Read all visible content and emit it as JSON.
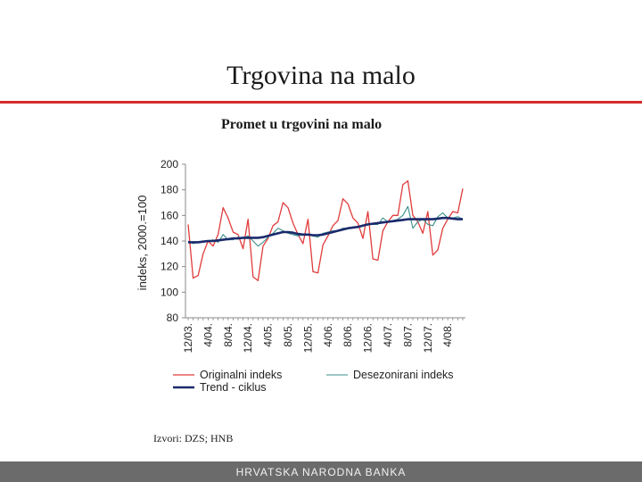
{
  "slide": {
    "title": "Trgovina na malo",
    "source": "Izvori: DZS; HNB",
    "footer": "HRVATSKA NARODNA BANKA",
    "accent_color": "#d42a2a"
  },
  "chart_data": {
    "type": "line",
    "title": "Promet u trgovini na malo",
    "ylabel": "indeks, 2000.=100",
    "ylim": [
      80,
      200
    ],
    "yticks": [
      80,
      100,
      120,
      140,
      160,
      180,
      200
    ],
    "x_tick_labels": [
      "12/03.",
      "4/04.",
      "8/04.",
      "12/04.",
      "4/05.",
      "8/05.",
      "12/05.",
      "4/06.",
      "8/06.",
      "12/06.",
      "4/07.",
      "8/07.",
      "12/07.",
      "4/08."
    ],
    "x_tick_start_index": 0,
    "x_tick_step": 4,
    "n_points": 56,
    "legend": {
      "position": "bottom"
    },
    "series": [
      {
        "name": "Originalni indeks",
        "color": "#e03c3c",
        "values": [
          153,
          111,
          113,
          130,
          140,
          136,
          145,
          166,
          158,
          147,
          145,
          134,
          157,
          112,
          109,
          136,
          142,
          152,
          155,
          170,
          166,
          154,
          145,
          138,
          157,
          116,
          115,
          137,
          144,
          152,
          156,
          173,
          169,
          158,
          154,
          142,
          163,
          126,
          125,
          148,
          155,
          160,
          160,
          184,
          187,
          160,
          155,
          146,
          163,
          129,
          133,
          150,
          157,
          163,
          162,
          181
        ]
      },
      {
        "name": "Desezonirani indeks",
        "color": "#3a8f8a",
        "values": [
          140,
          138,
          139,
          139,
          140,
          141,
          139,
          145,
          141,
          141,
          143,
          142,
          144,
          140,
          136,
          139,
          143,
          146,
          150,
          148,
          146,
          145,
          144,
          145,
          145,
          144,
          143,
          146,
          147,
          148,
          148,
          150,
          150,
          151,
          151,
          152,
          153,
          153,
          153,
          158,
          155,
          156,
          157,
          160,
          167,
          150,
          155,
          157,
          153,
          152,
          159,
          162,
          158,
          158,
          159,
          157
        ]
      },
      {
        "name": "Trend - ciklus",
        "color": "#1a2a6c",
        "values": [
          139,
          139,
          139,
          139.5,
          140,
          140,
          140.5,
          141,
          141.5,
          142,
          142,
          142.5,
          142.5,
          142.5,
          142.5,
          143,
          144,
          145,
          146,
          147,
          147,
          146.5,
          145.5,
          145,
          145,
          144.5,
          144.5,
          145,
          146,
          147,
          148,
          149,
          150,
          150.5,
          151,
          152,
          153,
          153.5,
          154,
          154.5,
          155,
          155.5,
          156,
          156.5,
          157,
          157,
          157,
          157,
          157,
          157,
          157.5,
          158,
          158,
          157.5,
          157,
          157
        ]
      }
    ]
  }
}
